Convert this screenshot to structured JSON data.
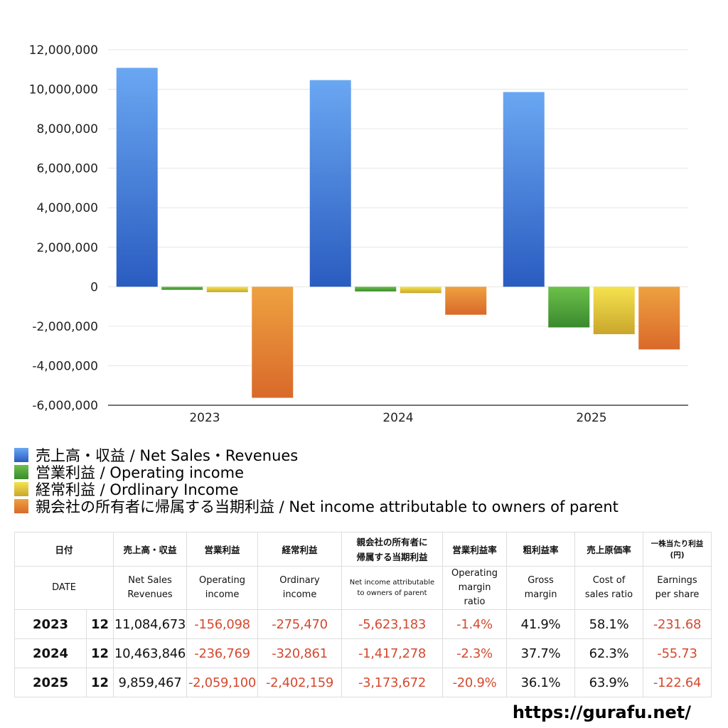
{
  "chart_data": {
    "type": "bar",
    "categories": [
      "2023",
      "2024",
      "2025"
    ],
    "series": [
      {
        "name": "売上高・収益 / Net Sales・Revenues",
        "color_top": "#6aa7f2",
        "color_bottom": "#2a5cc0",
        "values": [
          11084673,
          10463846,
          9859467
        ]
      },
      {
        "name": "営業利益 / Operating income",
        "color_top": "#6cc04a",
        "color_bottom": "#3a8a2e",
        "values": [
          -156098,
          -236769,
          -2059100
        ]
      },
      {
        "name": "経常利益 / Ordlinary Income",
        "color_top": "#f5e34e",
        "color_bottom": "#c9a62c",
        "values": [
          -275470,
          -320861,
          -2402159
        ]
      },
      {
        "name": "親会社の所有者に帰属する当期利益 / Net income attributable to owners of parent",
        "color_top": "#eea140",
        "color_bottom": "#d9692a",
        "values": [
          -5623183,
          -1417278,
          -3173672
        ]
      }
    ],
    "ylim": [
      -6000000,
      12000000
    ],
    "yticks": [
      12000000,
      10000000,
      8000000,
      6000000,
      4000000,
      2000000,
      0,
      -2000000,
      -4000000,
      -6000000
    ],
    "ytick_labels": [
      "12,000,000",
      "10,000,000",
      "8,000,000",
      "6,000,000",
      "4,000,000",
      "2,000,000",
      "0",
      "-2,000,000",
      "-4,000,000",
      "-6,000,000"
    ],
    "grid": true,
    "title": "",
    "xlabel": "",
    "ylabel": ""
  },
  "legend": [
    {
      "label": "売上高・収益 / Net Sales・Revenues",
      "color": "#3f7fe0"
    },
    {
      "label": "営業利益 / Operating income",
      "color": "#4ea03c"
    },
    {
      "label": "経常利益 / Ordlinary Income",
      "color": "#e0c23a"
    },
    {
      "label": "親会社の所有者に帰属する当期利益 / Net income attributable to owners of parent",
      "color": "#e4842f"
    }
  ],
  "table": {
    "header_jp": {
      "date": "日付",
      "sales": "売上高・収益",
      "op": "営業利益",
      "ord": "経常利益",
      "net_1": "親会社の所有者に",
      "net_2": "帰属する当期利益",
      "op_margin": "営業利益率",
      "gross": "粗利益率",
      "cost": "売上原価率",
      "eps_1": "一株当たり利益",
      "eps_2": "(円)"
    },
    "header_en": {
      "date": "DATE",
      "sales_1": "Net Sales",
      "sales_2": "Revenues",
      "op_1": "Operating",
      "op_2": "income",
      "ord_1": "Ordinary",
      "ord_2": "income",
      "net_1": "Net income attributable",
      "net_2": "to owners of parent",
      "op_margin_1": "Operating",
      "op_margin_2": "margin",
      "op_margin_3": "ratio",
      "gross_1": "Gross",
      "gross_2": "margin",
      "cost_1": "Cost of",
      "cost_2": "sales ratio",
      "eps_1": "Earnings",
      "eps_2": "per share"
    },
    "rows": [
      {
        "year": "2023",
        "month": "12",
        "sales": "11,084,673",
        "op": "-156,098",
        "ord": "-275,470",
        "net": "-5,623,183",
        "op_margin": "-1.4%",
        "gross": "41.9%",
        "cost": "58.1%",
        "eps": "-231.68"
      },
      {
        "year": "2024",
        "month": "12",
        "sales": "10,463,846",
        "op": "-236,769",
        "ord": "-320,861",
        "net": "-1,417,278",
        "op_margin": "-2.3%",
        "gross": "37.7%",
        "cost": "62.3%",
        "eps": "-55.73"
      },
      {
        "year": "2025",
        "month": "12",
        "sales": "9,859,467",
        "op": "-2,059,100",
        "ord": "-2,402,159",
        "net": "-3,173,672",
        "op_margin": "-20.9%",
        "gross": "36.1%",
        "cost": "63.9%",
        "eps": "-122.64"
      }
    ]
  },
  "site": "https://gurafu.net/"
}
